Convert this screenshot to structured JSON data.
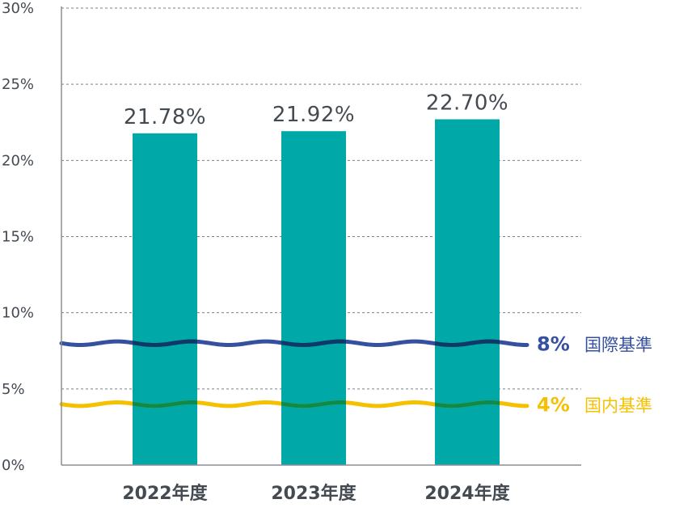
{
  "chart_data": {
    "type": "bar",
    "categories": [
      "2022年度",
      "2023年度",
      "2024年度"
    ],
    "values": [
      21.78,
      21.92,
      22.7
    ],
    "value_labels": [
      "21.78%",
      "21.92%",
      "22.70%"
    ],
    "ylim": [
      0,
      30
    ],
    "yticks": [
      0,
      5,
      10,
      15,
      20,
      25,
      30
    ],
    "ytick_labels": [
      "0%",
      "5%",
      "10%",
      "15%",
      "20%",
      "25%",
      "30%"
    ],
    "grid": true,
    "bar_color": "#00a8a8",
    "reference_lines": [
      {
        "value": 8,
        "value_label": "8%",
        "name": "国際基準",
        "color": "#3550a0",
        "overlap_color": "#0f3a68"
      },
      {
        "value": 4,
        "value_label": "4%",
        "name": "国内基準",
        "color": "#f5c000",
        "overlap_color": "#0f8a48"
      }
    ]
  }
}
